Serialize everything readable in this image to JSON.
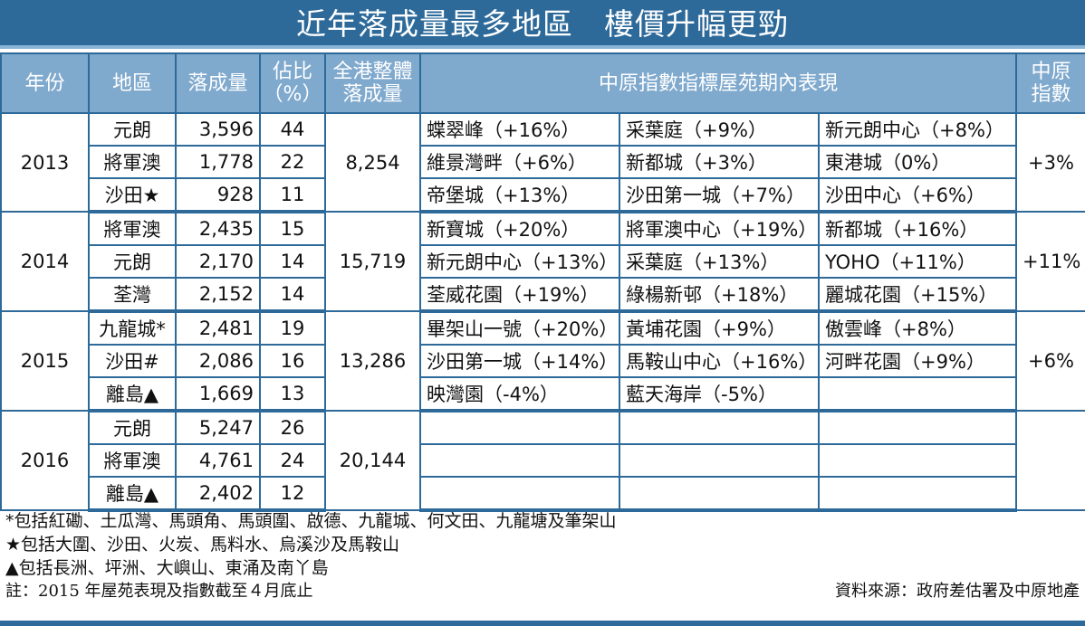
{
  "title": "近年落成量最多地區　樓價升幅更勁",
  "headers": {
    "year": "年份",
    "district": "地區",
    "completions": "落成量",
    "share_1": "佔比",
    "share_2": "（%）",
    "total_1": "全港整體",
    "total_2": "落成量",
    "estates": "中原指數指標屋苑期內表現",
    "index_1": "中原",
    "index_2": "指數"
  },
  "rows": [
    {
      "year": "2013",
      "total": "8,254",
      "index": "+3%",
      "districts": [
        {
          "name": "元朗",
          "units": "3,596",
          "pct": "44",
          "estates": [
            "蝶翠峰（+16%）",
            "采葉庭（+9%）",
            "新元朗中心（+8%）"
          ]
        },
        {
          "name": "將軍澳",
          "units": "1,778",
          "pct": "22",
          "estates": [
            "維景灣畔（+6%）",
            "新都城（+3%）",
            "東港城（0%）"
          ]
        },
        {
          "name": "沙田★",
          "units": "928",
          "pct": "11",
          "estates": [
            "帝堡城（+13%）",
            "沙田第一城（+7%）",
            "沙田中心（+6%）"
          ]
        }
      ]
    },
    {
      "year": "2014",
      "total": "15,719",
      "index": "+11%",
      "districts": [
        {
          "name": "將軍澳",
          "units": "2,435",
          "pct": "15",
          "estates": [
            "新寶城（+20%）",
            "將軍澳中心（+19%）",
            "新都城（+16%）"
          ]
        },
        {
          "name": "元朗",
          "units": "2,170",
          "pct": "14",
          "estates": [
            "新元朗中心（+13%）",
            "采葉庭（+13%）",
            "YOHO（+11%）"
          ]
        },
        {
          "name": "荃灣",
          "units": "2,152",
          "pct": "14",
          "estates": [
            "荃威花園（+19%）",
            "綠楊新邨（+18%）",
            "麗城花園（+15%）"
          ]
        }
      ]
    },
    {
      "year": "2015",
      "total": "13,286",
      "index": "+6%",
      "districts": [
        {
          "name": "九龍城*",
          "units": "2,481",
          "pct": "19",
          "estates": [
            "畢架山一號（+20%）",
            "黃埔花園（+9%）",
            "傲雲峰（+8%）"
          ]
        },
        {
          "name": "沙田#",
          "units": "2,086",
          "pct": "16",
          "estates": [
            "沙田第一城（+14%）",
            "馬鞍山中心（+16%）",
            "河畔花園（+9%）"
          ]
        },
        {
          "name": "離島▲",
          "units": "1,669",
          "pct": "13",
          "estates": [
            "映灣園（-4%）",
            "藍天海岸（-5%）",
            ""
          ]
        }
      ]
    },
    {
      "year": "2016",
      "total": "20,144",
      "index": "",
      "districts": [
        {
          "name": "元朗",
          "units": "5,247",
          "pct": "26",
          "estates": [
            "",
            "",
            ""
          ]
        },
        {
          "name": "將軍澳",
          "units": "4,761",
          "pct": "24",
          "estates": [
            "",
            "",
            ""
          ]
        },
        {
          "name": "離島▲",
          "units": "2,402",
          "pct": "12",
          "estates": [
            "",
            "",
            ""
          ]
        }
      ]
    }
  ],
  "notes": [
    "*包括紅磡、土瓜灣、馬頭角、馬頭圍、啟德、九龍城、何文田、九龍塘及筆架山",
    "★包括大圍、沙田、火炭、馬料水、烏溪沙及馬鞍山",
    "▲包括長洲、坪洲、大嶼山、東涌及南丫島"
  ],
  "footnote": "註：2015 年屋苑表現及指數截至４月底止",
  "source": "資料來源：政府差估署及中原地產",
  "colors": {
    "title_bg": "#2d6a9a",
    "header_bg": "#7fa9cd",
    "border": "#2d6a9a"
  }
}
